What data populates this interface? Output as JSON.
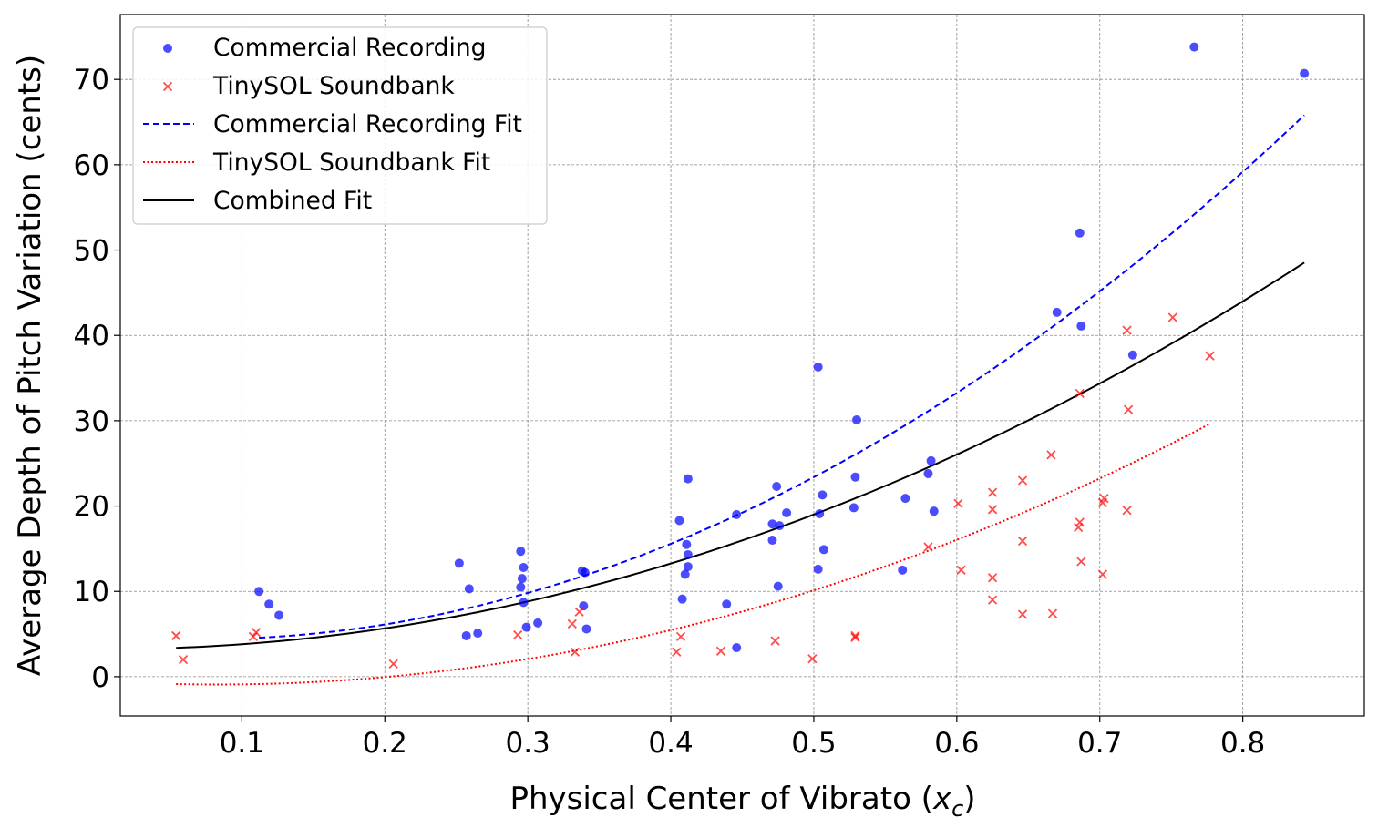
{
  "chart_data": {
    "type": "scatter",
    "title": "",
    "xlabel": "Physical Center of Vibrato ($x_c$)",
    "xlabel_text": "Physical Center of Vibrato (",
    "xlabel_math_var": "x",
    "xlabel_math_sub": "c",
    "xlabel_close": ")",
    "ylabel": "Average Depth of Pitch Variation (cents)",
    "xlim": [
      0.015,
      0.885
    ],
    "ylim": [
      -4.6,
      77.6
    ],
    "xticks": [
      0.1,
      0.2,
      0.3,
      0.4,
      0.5,
      0.6,
      0.7,
      0.8
    ],
    "xtick_labels": [
      "0.1",
      "0.2",
      "0.3",
      "0.4",
      "0.5",
      "0.6",
      "0.7",
      "0.8"
    ],
    "yticks": [
      0,
      10,
      20,
      30,
      40,
      50,
      60,
      70
    ],
    "ytick_labels": [
      "0",
      "10",
      "20",
      "30",
      "40",
      "50",
      "60",
      "70"
    ],
    "grid": true,
    "legend_position": "top-left",
    "colors": {
      "commercial": "#0000ff",
      "tinysol": "#ff0000",
      "combined": "#000000"
    },
    "series": [
      {
        "name": "Commercial Recording",
        "kind": "scatter",
        "marker": "circle",
        "color": "#0000ff",
        "points": [
          [
            0.112,
            10.0
          ],
          [
            0.119,
            8.5
          ],
          [
            0.126,
            7.2
          ],
          [
            0.252,
            13.3
          ],
          [
            0.257,
            4.8
          ],
          [
            0.259,
            10.3
          ],
          [
            0.265,
            5.1
          ],
          [
            0.295,
            14.7
          ],
          [
            0.295,
            10.5
          ],
          [
            0.296,
            11.5
          ],
          [
            0.297,
            12.8
          ],
          [
            0.297,
            8.7
          ],
          [
            0.299,
            5.8
          ],
          [
            0.307,
            6.3
          ],
          [
            0.338,
            12.4
          ],
          [
            0.339,
            8.3
          ],
          [
            0.34,
            12.2
          ],
          [
            0.341,
            5.6
          ],
          [
            0.406,
            18.3
          ],
          [
            0.408,
            9.1
          ],
          [
            0.41,
            12.0
          ],
          [
            0.411,
            15.5
          ],
          [
            0.412,
            14.3
          ],
          [
            0.412,
            12.9
          ],
          [
            0.412,
            23.2
          ],
          [
            0.439,
            8.5
          ],
          [
            0.446,
            19.0
          ],
          [
            0.446,
            3.4
          ],
          [
            0.471,
            17.9
          ],
          [
            0.471,
            16.0
          ],
          [
            0.474,
            22.3
          ],
          [
            0.475,
            10.6
          ],
          [
            0.476,
            17.7
          ],
          [
            0.481,
            19.2
          ],
          [
            0.503,
            36.3
          ],
          [
            0.503,
            12.6
          ],
          [
            0.504,
            19.1
          ],
          [
            0.506,
            21.3
          ],
          [
            0.507,
            14.9
          ],
          [
            0.528,
            19.8
          ],
          [
            0.529,
            23.4
          ],
          [
            0.53,
            30.1
          ],
          [
            0.562,
            12.5
          ],
          [
            0.564,
            20.9
          ],
          [
            0.58,
            23.8
          ],
          [
            0.582,
            25.3
          ],
          [
            0.584,
            19.4
          ],
          [
            0.67,
            42.7
          ],
          [
            0.686,
            52.0
          ],
          [
            0.687,
            41.1
          ],
          [
            0.723,
            37.7
          ],
          [
            0.766,
            73.8
          ],
          [
            0.843,
            70.7
          ]
        ]
      },
      {
        "name": "TinySOL Soundbank",
        "kind": "scatter",
        "marker": "x",
        "color": "#ff0000",
        "points": [
          [
            0.054,
            4.8
          ],
          [
            0.059,
            2.0
          ],
          [
            0.108,
            4.7
          ],
          [
            0.11,
            5.2
          ],
          [
            0.206,
            1.5
          ],
          [
            0.293,
            4.9
          ],
          [
            0.331,
            6.2
          ],
          [
            0.333,
            2.9
          ],
          [
            0.336,
            7.6
          ],
          [
            0.404,
            2.9
          ],
          [
            0.407,
            4.7
          ],
          [
            0.435,
            3.0
          ],
          [
            0.473,
            4.2
          ],
          [
            0.499,
            2.1
          ],
          [
            0.529,
            4.6
          ],
          [
            0.529,
            4.8
          ],
          [
            0.58,
            15.2
          ],
          [
            0.601,
            20.3
          ],
          [
            0.603,
            12.5
          ],
          [
            0.625,
            21.6
          ],
          [
            0.625,
            19.6
          ],
          [
            0.625,
            11.6
          ],
          [
            0.625,
            9.0
          ],
          [
            0.646,
            23.0
          ],
          [
            0.646,
            15.9
          ],
          [
            0.646,
            7.3
          ],
          [
            0.666,
            26.0
          ],
          [
            0.667,
            7.4
          ],
          [
            0.685,
            17.5
          ],
          [
            0.686,
            33.2
          ],
          [
            0.686,
            18.1
          ],
          [
            0.687,
            13.5
          ],
          [
            0.702,
            20.4
          ],
          [
            0.702,
            12.0
          ],
          [
            0.703,
            20.9
          ],
          [
            0.719,
            40.6
          ],
          [
            0.719,
            19.5
          ],
          [
            0.72,
            31.3
          ],
          [
            0.751,
            42.1
          ],
          [
            0.777,
            37.6
          ]
        ]
      },
      {
        "name": "Commercial Recording Fit",
        "kind": "line",
        "style": "dashed",
        "color": "#0000ff",
        "x_range": [
          0.112,
          0.843
        ],
        "quadratic_coefficients": [
          4.89,
          -14.4,
          102.8
        ]
      },
      {
        "name": "TinySOL Soundbank Fit",
        "kind": "line",
        "style": "dotted",
        "color": "#ff0000",
        "x_range": [
          0.054,
          0.777
        ],
        "quadratic_coefficients": [
          -0.48,
          -10.5,
          63.4
        ]
      },
      {
        "name": "Combined Fit",
        "kind": "line",
        "style": "solid",
        "color": "#000000",
        "x_range": [
          0.054,
          0.843
        ],
        "quadratic_coefficients": [
          3.24,
          -0.82,
          64.7
        ]
      }
    ]
  }
}
